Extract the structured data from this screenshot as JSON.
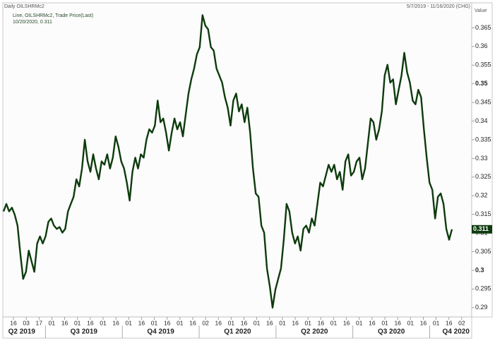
{
  "chart_data": {
    "type": "line",
    "title": "Daily OILSHRMc2",
    "subtitle": "Line, OILSHRMc2, Trade Price(Last)",
    "last_point": "10/20/2020, 0.311",
    "date_range": "5/7/2019 - 11/16/2020 (CHG)",
    "y_axis_label": "Value",
    "ylim": [
      0.2875,
      0.3717
    ],
    "yticks": [
      0.29,
      0.295,
      0.3,
      0.305,
      0.31,
      0.315,
      0.32,
      0.325,
      0.33,
      0.335,
      0.34,
      0.345,
      0.35,
      0.355,
      0.36,
      0.365
    ],
    "x_tick_labels": [
      "16",
      "03",
      "17",
      "01",
      "16",
      "01",
      "16",
      "01",
      "16",
      "01",
      "16",
      "01",
      "16",
      "01",
      "16",
      "02",
      "16",
      "01",
      "16",
      "01",
      "16",
      "01",
      "16",
      "01",
      "16",
      "01",
      "16",
      "01",
      "16",
      "01",
      "16",
      "01",
      "16",
      "01",
      "16",
      "02"
    ],
    "x_group_labels": [
      "Q2 2019",
      "Q3 2019",
      "Q4 2019",
      "Q1 2020",
      "Q2 2020",
      "Q3 2020",
      "Q4 2020"
    ],
    "series": [
      {
        "color": "#0d3b0d",
        "values": [
          0.3158,
          0.3178,
          0.3158,
          0.3168,
          0.3149,
          0.312,
          0.3044,
          0.2977,
          0.2996,
          0.3053,
          0.3024,
          0.2996,
          0.3072,
          0.3091,
          0.3072,
          0.3091,
          0.313,
          0.3139,
          0.312,
          0.3111,
          0.3116,
          0.3101,
          0.3111,
          0.3158,
          0.3178,
          0.3197,
          0.3244,
          0.3225,
          0.3273,
          0.335,
          0.3292,
          0.3264,
          0.3311,
          0.3273,
          0.3244,
          0.3292,
          0.3283,
          0.3311,
          0.3273,
          0.3302,
          0.3359,
          0.3331,
          0.3292,
          0.3273,
          0.3235,
          0.3187,
          0.3264,
          0.3302,
          0.3273,
          0.3311,
          0.3302,
          0.335,
          0.3378,
          0.3369,
          0.3388,
          0.3455,
          0.3397,
          0.3407,
          0.3369,
          0.3321,
          0.3369,
          0.3407,
          0.3378,
          0.3397,
          0.3359,
          0.3417,
          0.3474,
          0.3512,
          0.3541,
          0.3579,
          0.3598,
          0.3684,
          0.3656,
          0.3646,
          0.3598,
          0.3589,
          0.3541,
          0.3522,
          0.3503,
          0.3464,
          0.3436,
          0.3388,
          0.3455,
          0.3474,
          0.3426,
          0.3445,
          0.3397,
          0.3436,
          0.3369,
          0.3273,
          0.3206,
          0.3197,
          0.312,
          0.3101,
          0.3005,
          0.2958,
          0.29,
          0.2948,
          0.2977,
          0.3005,
          0.3082,
          0.3178,
          0.3158,
          0.3101,
          0.3072,
          0.3091,
          0.3053,
          0.3111,
          0.312,
          0.3101,
          0.3139,
          0.312,
          0.3178,
          0.3235,
          0.3225,
          0.3254,
          0.3283,
          0.3264,
          0.3283,
          0.3244,
          0.3264,
          0.3216,
          0.3292,
          0.3311,
          0.3254,
          0.3264,
          0.3292,
          0.3302,
          0.3244,
          0.3273,
          0.334,
          0.3407,
          0.3397,
          0.335,
          0.3378,
          0.3426,
          0.3522,
          0.3551,
          0.3503,
          0.3512,
          0.3445,
          0.3484,
          0.3522,
          0.3583,
          0.3531,
          0.3503,
          0.3455,
          0.3445,
          0.3484,
          0.3464,
          0.3378,
          0.3302,
          0.3235,
          0.3216,
          0.3139,
          0.3197,
          0.3206,
          0.3178,
          0.3111,
          0.3082,
          0.311
        ]
      }
    ]
  }
}
